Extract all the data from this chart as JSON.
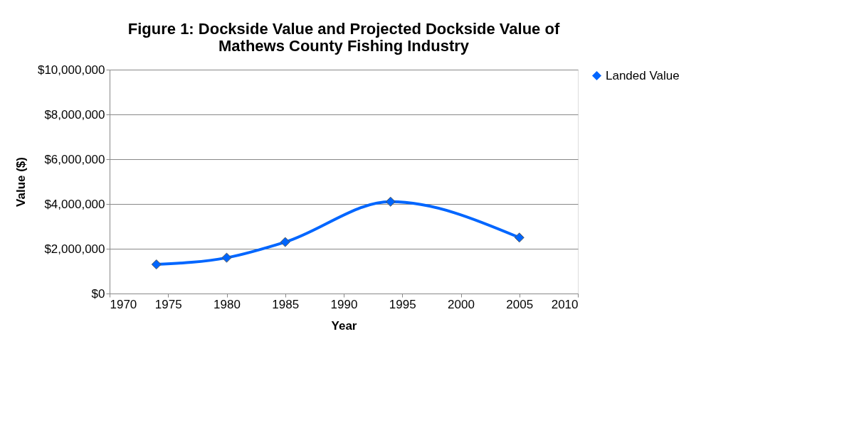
{
  "chart_data": {
    "type": "line",
    "title": "Figure 1: Dockside Value and Projected Dockside Value of Mathews County Fishing Industry",
    "xlabel": "Year",
    "ylabel": "Value ($)",
    "x": [
      1974,
      1980,
      1985,
      1994,
      2005
    ],
    "series": [
      {
        "name": "Landed Value",
        "color": "#0066ff",
        "values": [
          1300000,
          1600000,
          2300000,
          4100000,
          2500000
        ]
      }
    ],
    "xlim": [
      1970,
      2010
    ],
    "xticks": [
      1970,
      1975,
      1980,
      1985,
      1990,
      1995,
      2000,
      2005,
      2010
    ],
    "ylim": [
      0,
      10000000
    ],
    "yticks": [
      {
        "value": 0,
        "label": "$0"
      },
      {
        "value": 2000000,
        "label": "$2,000,000"
      },
      {
        "value": 4000000,
        "label": "$4,000,000"
      },
      {
        "value": 6000000,
        "label": "$6,000,000"
      },
      {
        "value": 8000000,
        "label": "$8,000,000"
      },
      {
        "value": 10000000,
        "label": "$10,000,000"
      }
    ],
    "grid": "y",
    "legend": "right",
    "marker": "diamond",
    "line_style": "solid"
  }
}
